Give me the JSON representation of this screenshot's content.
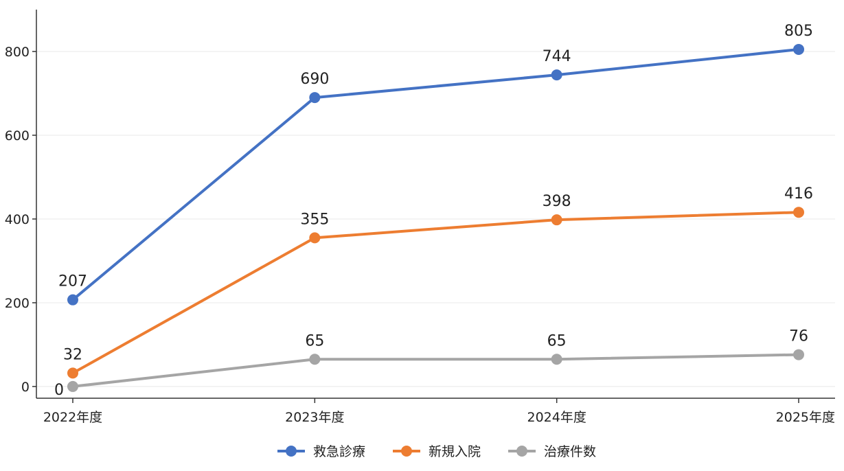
{
  "chart_data": {
    "type": "line",
    "title": "",
    "xlabel": "",
    "ylabel": "",
    "categories": [
      "2022年度",
      "2023年度",
      "2024年度",
      "2025年度"
    ],
    "ylim": [
      -28,
      900
    ],
    "yticks": [
      0,
      200,
      400,
      600,
      800
    ],
    "grid": true,
    "legend_position": "bottom-center",
    "series": [
      {
        "name": "救急診療",
        "color": "#4472c4",
        "values": [
          207,
          690,
          744,
          805
        ]
      },
      {
        "name": "新規入院",
        "color": "#ed7d31",
        "values": [
          32,
          355,
          398,
          416
        ]
      },
      {
        "name": "治療件数",
        "color": "#a5a5a5",
        "values": [
          0,
          65,
          65,
          76
        ]
      }
    ]
  }
}
